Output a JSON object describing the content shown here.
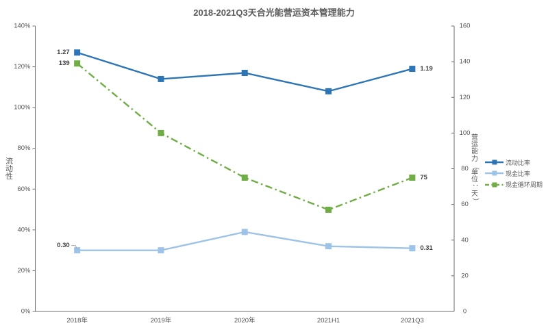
{
  "chart_data": {
    "type": "line",
    "title": "2018-2021Q3天合光能营运资本管理能力",
    "categories": [
      "2018年",
      "2019年",
      "2020年",
      "2021H1",
      "2021Q3"
    ],
    "left_axis": {
      "label": "流动性",
      "min": 0,
      "max": 1.4,
      "tick_step": 0.2,
      "tick_labels": [
        "0%",
        "20%",
        "40%",
        "60%",
        "80%",
        "100%",
        "120%",
        "140%"
      ]
    },
    "right_axis": {
      "label": "营运能力（单位：天）",
      "min": 0,
      "max": 160,
      "tick_step": 20,
      "tick_labels": [
        "0",
        "20",
        "40",
        "60",
        "80",
        "100",
        "120",
        "140",
        "160"
      ]
    },
    "series": [
      {
        "name": "流动比率",
        "axis": "left",
        "color": "#2E75B6",
        "line_style": "solid",
        "marker": "square",
        "values": [
          1.27,
          1.14,
          1.17,
          1.08,
          1.19
        ]
      },
      {
        "name": "现金比率",
        "axis": "left",
        "color": "#9DC3E6",
        "line_style": "solid",
        "marker": "square",
        "values": [
          0.3,
          0.3,
          0.39,
          0.32,
          0.31
        ]
      },
      {
        "name": "现金循环周期",
        "axis": "right",
        "color": "#70AD47",
        "line_style": "dash-dot",
        "marker": "square",
        "values": [
          139,
          100,
          75,
          57,
          75
        ]
      }
    ],
    "data_labels": [
      {
        "series": 0,
        "point": 0,
        "text": "1.27",
        "side": "left"
      },
      {
        "series": 0,
        "point": 4,
        "text": "1.19",
        "side": "right"
      },
      {
        "series": 1,
        "point": 0,
        "text": "0.30",
        "side": "left",
        "dy": -7,
        "leader": true
      },
      {
        "series": 1,
        "point": 4,
        "text": "0.31",
        "side": "right"
      },
      {
        "series": 2,
        "point": 0,
        "text": "139",
        "side": "left"
      },
      {
        "series": 2,
        "point": 4,
        "text": "75",
        "side": "right"
      }
    ],
    "legend": {
      "position": "right",
      "entries": [
        "流动比率",
        "现金比率",
        "现金循环周期"
      ]
    },
    "grid": false,
    "colors": {
      "axis_line": "#6E6E6E",
      "tick_label": "#525252",
      "data_label": "#404040",
      "leader_line": "#A6A6A6",
      "background": "#FFFFFF"
    }
  }
}
